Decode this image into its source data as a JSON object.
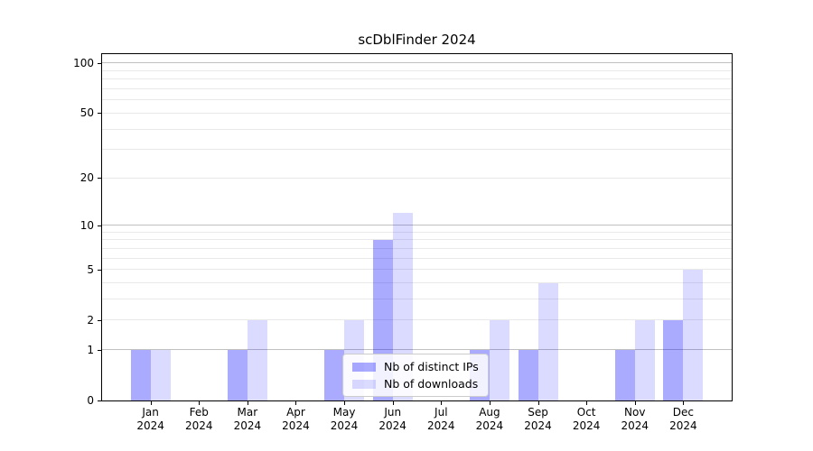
{
  "chart_data": {
    "type": "bar",
    "title": "scDblFinder 2024",
    "categories": [
      "Jan 2024",
      "Feb 2024",
      "Mar 2024",
      "Apr 2024",
      "May 2024",
      "Jun 2024",
      "Jul 2024",
      "Aug 2024",
      "Sep 2024",
      "Oct 2024",
      "Nov 2024",
      "Dec 2024"
    ],
    "series": [
      {
        "name": "Nb of distinct IPs",
        "color": "rgba(0,0,255,0.335)",
        "values": [
          1,
          0,
          1,
          0,
          1,
          8,
          0,
          1,
          1,
          0,
          1,
          2
        ]
      },
      {
        "name": "Nb of downloads",
        "color": "rgba(0,0,255,0.14)",
        "values": [
          1,
          0,
          2,
          0,
          2,
          12,
          0,
          2,
          4,
          0,
          2,
          5
        ]
      }
    ],
    "xlabel": "",
    "ylabel": "",
    "yscale": "log1p",
    "ylim": [
      0,
      113
    ],
    "yticks": [
      0,
      1,
      2,
      5,
      10,
      20,
      50,
      100
    ],
    "major_gridlines": [
      1,
      10,
      100
    ],
    "minor_gridlines": [
      2,
      3,
      4,
      5,
      6,
      7,
      8,
      9,
      20,
      30,
      40,
      50,
      60,
      70,
      80,
      90
    ],
    "grid": true,
    "grid_colors": {
      "major": "#c0c0c0",
      "minor": "#e9e9e9"
    },
    "legend_position": "lower center",
    "axis_color": "#000000"
  }
}
